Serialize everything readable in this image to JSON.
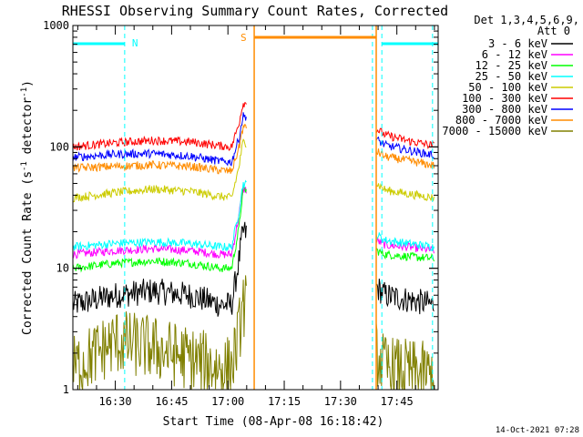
{
  "chart_data": {
    "type": "line",
    "title": "RHESSI Observing Summary Count Rates, Corrected",
    "xlabel": "Start Time (08-Apr-08 16:18:42)",
    "ylabel": "Corrected Count Rate (s",
    "ylabel_sup1": "-1",
    "ylabel_mid": " detector",
    "ylabel_sup2": "-1",
    "ylabel_end": ")",
    "yscale": "log",
    "ylim": [
      1,
      1000
    ],
    "yticks": [
      {
        "value": 1,
        "label": "1"
      },
      {
        "value": 10,
        "label": "10"
      },
      {
        "value": 100,
        "label": "100"
      },
      {
        "value": 1000,
        "label": "1000"
      }
    ],
    "xlim": [
      "16:18:42",
      "17:56:00"
    ],
    "xticks": [
      "16:30",
      "16:45",
      "17:00",
      "17:15",
      "17:30",
      "17:45"
    ],
    "gaps": [
      [
        "17:05:00",
        "17:39:30"
      ]
    ],
    "series": [
      {
        "name": "3 - 6 keV",
        "color": "#000000",
        "x": [
          "16:18:42",
          "16:30",
          "16:40",
          "16:50",
          "16:58",
          "17:01",
          "17:03",
          "17:04",
          "17:39:30",
          "17:42",
          "17:48",
          "17:55"
        ],
        "y": [
          5.0,
          6.0,
          6.5,
          6.0,
          5.0,
          5.0,
          12,
          20,
          7,
          6,
          5.5,
          5
        ]
      },
      {
        "name": "6 - 12 keV",
        "color": "#ff00ff",
        "x": [
          "16:18:42",
          "16:30",
          "16:40",
          "16:50",
          "16:58",
          "17:01",
          "17:03",
          "17:04",
          "17:39:30",
          "17:42",
          "17:48",
          "17:55"
        ],
        "y": [
          13,
          14,
          14.5,
          14,
          13,
          13,
          28,
          45,
          17,
          15.5,
          15,
          14
        ]
      },
      {
        "name": "12 - 25 keV",
        "color": "#00ff00",
        "x": [
          "16:18:42",
          "16:30",
          "16:40",
          "16:50",
          "16:58",
          "17:01",
          "17:03",
          "17:04",
          "17:39:30",
          "17:42",
          "17:48",
          "17:55"
        ],
        "y": [
          10,
          11,
          11.5,
          11,
          10,
          10,
          22,
          45,
          14,
          13,
          12.5,
          12
        ]
      },
      {
        "name": "25 - 50 keV",
        "color": "#00ffff",
        "x": [
          "16:18:42",
          "16:30",
          "16:40",
          "16:50",
          "16:58",
          "17:01",
          "17:03",
          "17:04",
          "17:39:30",
          "17:42",
          "17:48",
          "17:55"
        ],
        "y": [
          15,
          16,
          16.5,
          16,
          15,
          15,
          30,
          50,
          19,
          17,
          16,
          15
        ]
      },
      {
        "name": "50 - 100 keV",
        "color": "#cccc00",
        "x": [
          "16:18:42",
          "16:30",
          "16:40",
          "16:50",
          "16:58",
          "17:01",
          "17:03",
          "17:04",
          "17:39:30",
          "17:42",
          "17:48",
          "17:55"
        ],
        "y": [
          38,
          42,
          45,
          43,
          39,
          38,
          70,
          110,
          50,
          44,
          41,
          38
        ]
      },
      {
        "name": "100 - 300 keV",
        "color": "#ff0000",
        "x": [
          "16:18:42",
          "16:30",
          "16:40",
          "16:50",
          "16:58",
          "17:01",
          "17:03",
          "17:04",
          "17:39:30",
          "17:42",
          "17:48",
          "17:55"
        ],
        "y": [
          100,
          108,
          113,
          110,
          102,
          100,
          160,
          230,
          140,
          125,
          112,
          102
        ]
      },
      {
        "name": "300 - 800 keV",
        "color": "#0000ff",
        "x": [
          "16:18:42",
          "16:30",
          "16:40",
          "16:50",
          "16:58",
          "17:01",
          "17:03",
          "17:04",
          "17:39:30",
          "17:42",
          "17:48",
          "17:55"
        ],
        "y": [
          82,
          87,
          88,
          84,
          76,
          75,
          120,
          180,
          115,
          103,
          94,
          85
        ]
      },
      {
        "name": "800 - 7000 keV",
        "color": "#ff8c00",
        "x": [
          "16:18:42",
          "16:30",
          "16:40",
          "16:50",
          "16:58",
          "17:01",
          "17:03",
          "17:04",
          "17:39:30",
          "17:42",
          "17:48",
          "17:55"
        ],
        "y": [
          67,
          69,
          71,
          69,
          64,
          63,
          100,
          145,
          92,
          83,
          77,
          70
        ]
      },
      {
        "name": "7000 - 15000 keV",
        "color": "#808000",
        "x": [
          "16:18:42",
          "16:30",
          "16:40",
          "16:50",
          "16:58",
          "17:01",
          "17:03",
          "17:04",
          "17:39:30",
          "17:42",
          "17:48",
          "17:55"
        ],
        "y": [
          1.5,
          2.5,
          2.2,
          1.8,
          1.5,
          1.5,
          3,
          5,
          2,
          1.5,
          1.4,
          1.3
        ]
      }
    ],
    "legend": {
      "placement": "top-right",
      "header": [
        "Det 1,3,4,5,6,9,",
        "Att 0"
      ]
    },
    "annotations": {
      "night_label": "N",
      "saa_label": "S",
      "night_color": "#00ffff",
      "saa_color": "#ff8c00",
      "night_bars": [
        [
          "16:18:42",
          "16:32:30"
        ],
        [
          "17:41:00",
          "17:56:00"
        ]
      ],
      "night_lines": [
        "16:32:30",
        "17:38:30",
        "17:41:00",
        "17:54:30"
      ],
      "saa_bar": [
        "17:07:00",
        "17:39:30"
      ],
      "saa_lines": [
        "17:07:00",
        "17:39:30"
      ]
    },
    "timestamp": "14-Oct-2021 07:28",
    "grid": false
  }
}
